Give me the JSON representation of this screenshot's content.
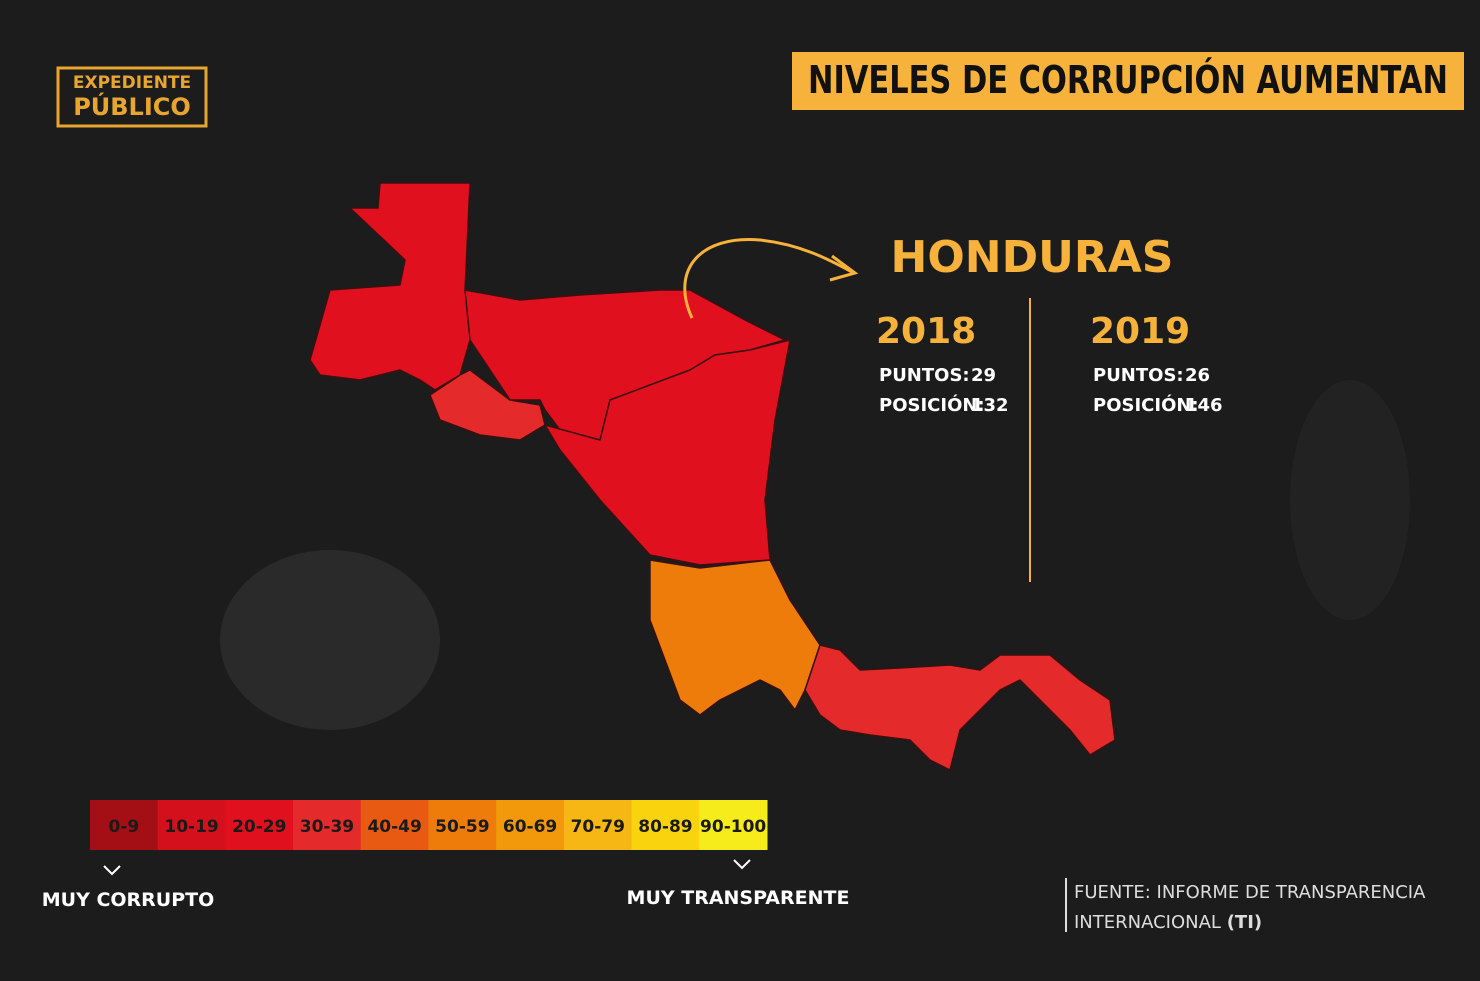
{
  "logo": {
    "line1": "EXPEDIENTE",
    "line2": "PÚBLICO"
  },
  "header": {
    "title": "NIVELES DE CORRUPCIÓN AUMENTAN"
  },
  "country": {
    "name": "HONDURAS",
    "years": [
      {
        "year": "2018",
        "points_label": "PUNTOS:",
        "points": "29",
        "position_label": "POSICIÓN:",
        "position": "132"
      },
      {
        "year": "2019",
        "points_label": "PUNTOS:",
        "points": "26",
        "position_label": "POSICIÓN:",
        "position": "146"
      }
    ]
  },
  "legend": {
    "ranges": [
      {
        "label": "0-9",
        "color": "#a30f14"
      },
      {
        "label": "10-19",
        "color": "#d3101c"
      },
      {
        "label": "20-29",
        "color": "#e0101f"
      },
      {
        "label": "30-39",
        "color": "#e42a2a"
      },
      {
        "label": "40-49",
        "color": "#e85a12"
      },
      {
        "label": "50-59",
        "color": "#ee7c0a"
      },
      {
        "label": "60-69",
        "color": "#f2990b"
      },
      {
        "label": "70-79",
        "color": "#f6b614"
      },
      {
        "label": "80-89",
        "color": "#f9d40e"
      },
      {
        "label": "90-100",
        "color": "#f6ec1c"
      }
    ],
    "low_label": "MUY CORRUPTO",
    "high_label": "MUY TRANSPARENTE"
  },
  "source": {
    "line1": "FUENTE: INFORME DE TRANSPARENCIA",
    "line2": "INTERNACIONAL",
    "tag": "(TI)"
  }
}
